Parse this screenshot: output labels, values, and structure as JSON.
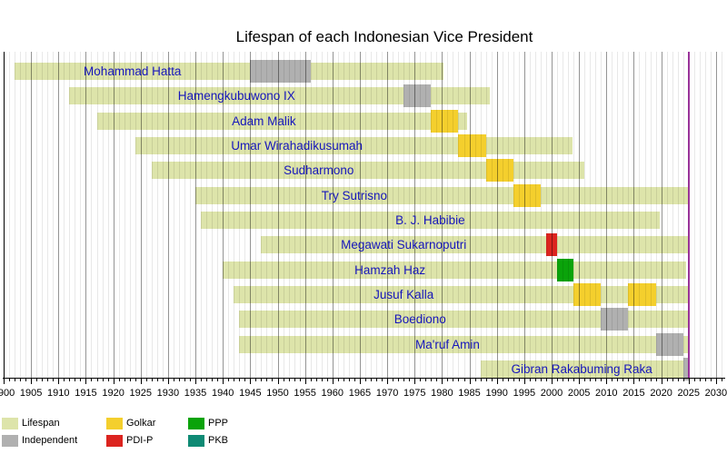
{
  "title": "Lifespan of each Indonesian Vice President",
  "present_year": 2025,
  "colors": {
    "party": {
      "Lifespan": "#dde4aa",
      "Independent": "#b0b0b0",
      "Golkar": "#f4cf2d",
      "PDI-P": "#dc241f",
      "PPP": "#0aa30a",
      "PKB": "#0e8a74"
    },
    "present_line": "#993399",
    "name_text": "#1616bb"
  },
  "axis": {
    "start": 1900,
    "end": 2030,
    "minor_tick_interval": 1,
    "label_interval": 5,
    "tick_labels": [
      "1900",
      "1905",
      "1910",
      "1915",
      "1920",
      "1925",
      "1930",
      "1935",
      "1940",
      "1945",
      "1950",
      "1955",
      "1960",
      "1965",
      "1970",
      "1975",
      "1980",
      "1985",
      "1990",
      "1995",
      "2000",
      "2005",
      "2010",
      "2015",
      "2020",
      "2025",
      "2030"
    ]
  },
  "chart_data": {
    "type": "timeline-bar",
    "title": "Lifespan of each Indonesian Vice President",
    "xlim": [
      1900,
      2030
    ],
    "grid": "on",
    "legend_position": "bottom",
    "rows": [
      {
        "name": "Mohammad Hatta",
        "birth": 1902,
        "death": 1980.2,
        "terms": [
          {
            "start": 1945,
            "end": 1956,
            "party": "Independent"
          }
        ]
      },
      {
        "name": "Hamengkubuwono IX",
        "birth": 1912,
        "death": 1988.8,
        "terms": [
          {
            "start": 1973,
            "end": 1978,
            "party": "Independent"
          }
        ]
      },
      {
        "name": "Adam Malik",
        "birth": 1917,
        "death": 1984.5,
        "terms": [
          {
            "start": 1978,
            "end": 1983,
            "party": "Golkar"
          }
        ]
      },
      {
        "name": "Umar Wirahadikusumah",
        "birth": 1924,
        "death": 2003.8,
        "terms": [
          {
            "start": 1983,
            "end": 1988,
            "party": "Golkar"
          }
        ]
      },
      {
        "name": "Sudharmono",
        "birth": 1927,
        "death": 2006,
        "terms": [
          {
            "start": 1988,
            "end": 1993,
            "party": "Golkar"
          }
        ]
      },
      {
        "name": "Try Sutrisno",
        "birth": 1935,
        "death": null,
        "terms": [
          {
            "start": 1993,
            "end": 1998,
            "party": "Golkar"
          }
        ]
      },
      {
        "name": "B. J. Habibie",
        "birth": 1936,
        "death": 2019.7,
        "terms": []
      },
      {
        "name": "Megawati Sukarnoputri",
        "birth": 1947,
        "death": null,
        "terms": [
          {
            "start": 1999,
            "end": 2001,
            "party": "PDI-P"
          }
        ]
      },
      {
        "name": "Hamzah Haz",
        "birth": 1940,
        "death": 2024.5,
        "terms": [
          {
            "start": 2001,
            "end": 2004,
            "party": "PPP"
          }
        ]
      },
      {
        "name": "Jusuf Kalla",
        "birth": 1942,
        "death": null,
        "terms": [
          {
            "start": 2004,
            "end": 2009,
            "party": "Golkar"
          },
          {
            "start": 2014,
            "end": 2019,
            "party": "Golkar"
          }
        ]
      },
      {
        "name": "Boediono",
        "birth": 1943,
        "death": null,
        "terms": [
          {
            "start": 2009,
            "end": 2014,
            "party": "Independent"
          }
        ]
      },
      {
        "name": "Ma'ruf Amin",
        "birth": 1943,
        "death": null,
        "terms": [
          {
            "start": 2019,
            "end": 2024,
            "party": "Independent"
          }
        ]
      },
      {
        "name": "Gibran Rakabuming Raka",
        "birth": 1987,
        "death": null,
        "terms": [
          {
            "start": 2024,
            "end": null,
            "party": "Independent"
          }
        ]
      }
    ],
    "legend": [
      {
        "items": [
          {
            "label": "Lifespan",
            "party": "Lifespan"
          },
          {
            "label": "Independent",
            "party": "Independent"
          }
        ]
      },
      {
        "items": [
          {
            "label": "Golkar",
            "party": "Golkar"
          },
          {
            "label": "PDI-P",
            "party": "PDI-P"
          }
        ]
      },
      {
        "items": [
          {
            "label": "PPP",
            "party": "PPP"
          },
          {
            "label": "PKB",
            "party": "PKB"
          }
        ]
      }
    ]
  }
}
